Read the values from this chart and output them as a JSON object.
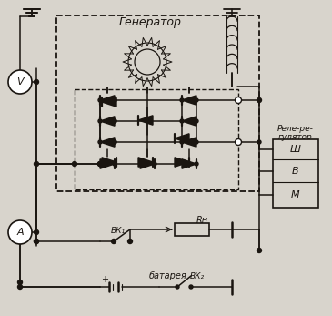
{
  "bg_color": "#d8d4cc",
  "line_color": "#1a1510",
  "title": "Генератор",
  "relay_line1": "Реле-ре-",
  "relay_line2": "гулятор",
  "relay_sh": "Ш",
  "relay_v": "В",
  "relay_m": "М",
  "vk1_label": "ВК₁",
  "vk2_label": "ВК₂",
  "rh_label": "Rн",
  "battery_label": "батарея",
  "voltmeter_label": "V",
  "ammeter_label": "A",
  "fig_width": 3.65,
  "fig_height": 3.47,
  "dpi": 100
}
